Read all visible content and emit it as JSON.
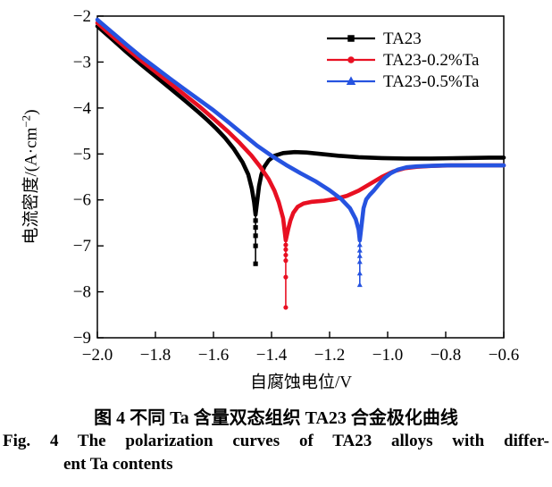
{
  "figure": {
    "xlabel": "自腐蚀电位/V",
    "ylabel_pre": "电流密度/(A·cm",
    "ylabel_sup": "−2",
    "ylabel_post": ")",
    "caption_zh": "图 4  不同 Ta 含量双态组织 TA23 合金极化曲线",
    "caption_en_line1": "Fig. 4   The polarization curves of TA23 alloys with differ-",
    "caption_en_line2": "ent Ta contents"
  },
  "chart_data": {
    "type": "line",
    "title": "",
    "xlabel": "自腐蚀电位/V",
    "ylabel": "电流密度/(A·cm−2)",
    "xlim": [
      -2.0,
      -0.6
    ],
    "ylim": [
      -9,
      -2
    ],
    "grid": false,
    "legend_position": "upper-right-inside",
    "x_ticks": [
      -2.0,
      -1.8,
      -1.6,
      -1.4,
      -1.2,
      -1.0,
      -0.8,
      -0.6
    ],
    "x_tick_labels": [
      "−2.0",
      "−1.8",
      "−1.6",
      "−1.4",
      "−1.2",
      "−1.0",
      "−0.8",
      "−0.6"
    ],
    "y_ticks": [
      -2,
      -3,
      -4,
      -5,
      -6,
      -7,
      -8,
      -9
    ],
    "y_tick_labels": [
      "−2",
      "−3",
      "−4",
      "−5",
      "−6",
      "−7",
      "−8",
      "−9"
    ],
    "series": [
      {
        "name": "TA23",
        "color": "#000000",
        "marker": "square",
        "corrosion_potential_V": -1.455,
        "points": [
          [
            -2.0,
            -2.22
          ],
          [
            -1.95,
            -2.5
          ],
          [
            -1.9,
            -2.78
          ],
          [
            -1.85,
            -3.05
          ],
          [
            -1.8,
            -3.31
          ],
          [
            -1.75,
            -3.57
          ],
          [
            -1.7,
            -3.83
          ],
          [
            -1.65,
            -4.1
          ],
          [
            -1.62,
            -4.27
          ],
          [
            -1.59,
            -4.45
          ],
          [
            -1.56,
            -4.65
          ],
          [
            -1.53,
            -4.89
          ],
          [
            -1.5,
            -5.18
          ],
          [
            -1.48,
            -5.45
          ],
          [
            -1.468,
            -5.75
          ],
          [
            -1.46,
            -6.05
          ],
          [
            -1.455,
            -6.32
          ],
          [
            -1.45,
            -6.05
          ],
          [
            -1.443,
            -5.7
          ],
          [
            -1.435,
            -5.45
          ],
          [
            -1.425,
            -5.28
          ],
          [
            -1.41,
            -5.14
          ],
          [
            -1.39,
            -5.04
          ],
          [
            -1.36,
            -4.98
          ],
          [
            -1.32,
            -4.96
          ],
          [
            -1.28,
            -4.97
          ],
          [
            -1.23,
            -5.0
          ],
          [
            -1.17,
            -5.04
          ],
          [
            -1.1,
            -5.07
          ],
          [
            -1.02,
            -5.09
          ],
          [
            -0.94,
            -5.1
          ],
          [
            -0.85,
            -5.1
          ],
          [
            -0.75,
            -5.09
          ],
          [
            -0.65,
            -5.08
          ],
          [
            -0.6,
            -5.08
          ]
        ],
        "spike": {
          "v": -1.455,
          "top": -6.32,
          "bottom": -7.39,
          "marker_values": [
            -6.45,
            -6.6,
            -6.78,
            -7.0,
            -7.39
          ]
        }
      },
      {
        "name": "TA23-0.2%Ta",
        "color": "#e81022",
        "marker": "circle",
        "corrosion_potential_V": -1.35,
        "points": [
          [
            -2.0,
            -2.15
          ],
          [
            -1.95,
            -2.43
          ],
          [
            -1.9,
            -2.7
          ],
          [
            -1.85,
            -2.96
          ],
          [
            -1.8,
            -3.21
          ],
          [
            -1.75,
            -3.46
          ],
          [
            -1.7,
            -3.71
          ],
          [
            -1.65,
            -3.96
          ],
          [
            -1.6,
            -4.23
          ],
          [
            -1.55,
            -4.51
          ],
          [
            -1.51,
            -4.76
          ],
          [
            -1.47,
            -5.03
          ],
          [
            -1.44,
            -5.27
          ],
          [
            -1.41,
            -5.55
          ],
          [
            -1.39,
            -5.8
          ],
          [
            -1.375,
            -6.05
          ],
          [
            -1.36,
            -6.4
          ],
          [
            -1.351,
            -6.88
          ],
          [
            -1.343,
            -6.65
          ],
          [
            -1.335,
            -6.45
          ],
          [
            -1.325,
            -6.28
          ],
          [
            -1.31,
            -6.15
          ],
          [
            -1.29,
            -6.08
          ],
          [
            -1.26,
            -6.04
          ],
          [
            -1.22,
            -6.02
          ],
          [
            -1.18,
            -5.98
          ],
          [
            -1.14,
            -5.91
          ],
          [
            -1.1,
            -5.8
          ],
          [
            -1.06,
            -5.65
          ],
          [
            -1.02,
            -5.5
          ],
          [
            -0.98,
            -5.38
          ],
          [
            -0.94,
            -5.31
          ],
          [
            -0.9,
            -5.28
          ],
          [
            -0.85,
            -5.26
          ],
          [
            -0.78,
            -5.25
          ],
          [
            -0.7,
            -5.25
          ],
          [
            -0.6,
            -5.25
          ]
        ],
        "spike": {
          "v": -1.351,
          "top": -6.88,
          "bottom": -8.34,
          "marker_values": [
            -6.98,
            -7.08,
            -7.2,
            -7.32,
            -7.68,
            -8.34
          ]
        }
      },
      {
        "name": "TA23-0.5%Ta",
        "color": "#2653e0",
        "marker": "triangle",
        "corrosion_potential_V": -1.1,
        "points": [
          [
            -2.0,
            -2.08
          ],
          [
            -1.95,
            -2.35
          ],
          [
            -1.9,
            -2.62
          ],
          [
            -1.85,
            -2.88
          ],
          [
            -1.8,
            -3.12
          ],
          [
            -1.75,
            -3.36
          ],
          [
            -1.7,
            -3.59
          ],
          [
            -1.65,
            -3.82
          ],
          [
            -1.6,
            -4.05
          ],
          [
            -1.55,
            -4.3
          ],
          [
            -1.5,
            -4.56
          ],
          [
            -1.45,
            -4.82
          ],
          [
            -1.4,
            -5.04
          ],
          [
            -1.35,
            -5.24
          ],
          [
            -1.3,
            -5.42
          ],
          [
            -1.25,
            -5.59
          ],
          [
            -1.2,
            -5.79
          ],
          [
            -1.16,
            -5.98
          ],
          [
            -1.13,
            -6.18
          ],
          [
            -1.11,
            -6.42
          ],
          [
            -1.1,
            -6.65
          ],
          [
            -1.096,
            -6.88
          ],
          [
            -1.09,
            -6.55
          ],
          [
            -1.083,
            -6.18
          ],
          [
            -1.074,
            -5.99
          ],
          [
            -1.062,
            -5.89
          ],
          [
            -1.048,
            -5.8
          ],
          [
            -1.03,
            -5.66
          ],
          [
            -1.01,
            -5.52
          ],
          [
            -0.99,
            -5.42
          ],
          [
            -0.965,
            -5.34
          ],
          [
            -0.935,
            -5.29
          ],
          [
            -0.9,
            -5.27
          ],
          [
            -0.86,
            -5.26
          ],
          [
            -0.8,
            -5.25
          ],
          [
            -0.72,
            -5.25
          ],
          [
            -0.6,
            -5.25
          ]
        ],
        "spike": {
          "v": -1.096,
          "top": -6.88,
          "bottom": -7.85,
          "marker_values": [
            -6.98,
            -7.1,
            -7.22,
            -7.35,
            -7.6,
            -7.85
          ]
        }
      }
    ]
  }
}
